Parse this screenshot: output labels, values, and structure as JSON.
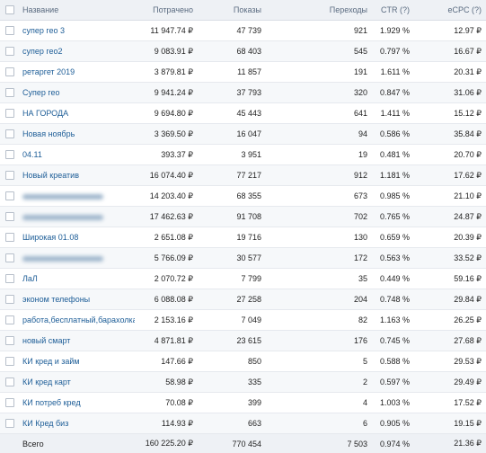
{
  "table": {
    "header": [
      "Название",
      "Потрачено",
      "Показы",
      "Переходы",
      "CTR (?)",
      "eCPC (?)"
    ],
    "rows": [
      [
        "супер гео 3",
        "11 947.74 ₽",
        "47 739",
        "921",
        "1.929 %",
        "12.97 ₽"
      ],
      [
        "супер гео2",
        "9 083.91 ₽",
        "68 403",
        "545",
        "0.797 %",
        "16.67 ₽"
      ],
      [
        "ретаргет 2019",
        "3 879.81 ₽",
        "11 857",
        "191",
        "1.611 %",
        "20.31 ₽"
      ],
      [
        "Супер гео",
        "9 941.24 ₽",
        "37 793",
        "320",
        "0.847 %",
        "31.06 ₽"
      ],
      [
        "НА ГОРОДА",
        "9 694.80 ₽",
        "45 443",
        "641",
        "1.411 %",
        "15.12 ₽"
      ],
      [
        "Новая ноябрь",
        "3 369.50 ₽",
        "16 047",
        "94",
        "0.586 %",
        "35.84 ₽"
      ],
      [
        "04.11",
        "393.37 ₽",
        "3 951",
        "19",
        "0.481 %",
        "20.70 ₽"
      ],
      [
        "Новый креатив",
        "16 074.40 ₽",
        "77 217",
        "912",
        "1.181 %",
        "17.62 ₽"
      ],
      [
        null,
        "14 203.40 ₽",
        "68 355",
        "673",
        "0.985 %",
        "21.10 ₽"
      ],
      [
        null,
        "17 462.63 ₽",
        "91 708",
        "702",
        "0.765 %",
        "24.87 ₽"
      ],
      [
        "Широкая 01.08",
        "2 651.08 ₽",
        "19 716",
        "130",
        "0.659 %",
        "20.39 ₽"
      ],
      [
        null,
        "5 766.09 ₽",
        "30 577",
        "172",
        "0.563 %",
        "33.52 ₽"
      ],
      [
        "ЛаЛ",
        "2 070.72 ₽",
        "7 799",
        "35",
        "0.449 %",
        "59.16 ₽"
      ],
      [
        "эконом телефоны",
        "6 088.08 ₽",
        "27 258",
        "204",
        "0.748 %",
        "29.84 ₽"
      ],
      [
        "работа,бесплатный,барахолка",
        "2 153.16 ₽",
        "7 049",
        "82",
        "1.163 %",
        "26.25 ₽"
      ],
      [
        "новый смарт",
        "4 871.81 ₽",
        "23 615",
        "176",
        "0.745 %",
        "27.68 ₽"
      ],
      [
        "КИ кред и займ",
        "147.66 ₽",
        "850",
        "5",
        "0.588 %",
        "29.53 ₽"
      ],
      [
        "КИ кред карт",
        "58.98 ₽",
        "335",
        "2",
        "0.597 %",
        "29.49 ₽"
      ],
      [
        "КИ потреб кред",
        "70.08 ₽",
        "399",
        "4",
        "1.003 %",
        "17.52 ₽"
      ],
      [
        "КИ Кред биз",
        "114.93 ₽",
        "663",
        "6",
        "0.905 %",
        "19.15 ₽"
      ]
    ],
    "footer": [
      "Всего",
      "160 225.20 ₽",
      "770 454",
      "7 503",
      "0.974 %",
      "21.36 ₽"
    ]
  }
}
